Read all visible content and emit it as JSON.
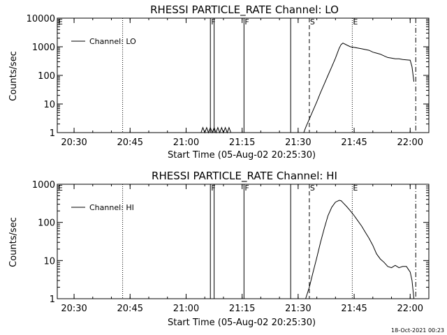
{
  "footer": {
    "timestamp": "18-Oct-2021 00:23"
  },
  "chart_data": [
    {
      "type": "line",
      "title": "RHESSI PARTICLE_RATE Channel: LO",
      "xlabel": "Start Time (05-Aug-02 20:25:30)",
      "ylabel": "Counts/sec",
      "yscale": "log",
      "ylim": [
        1,
        10000
      ],
      "xlim": [
        "20:25:30",
        "22:05:00"
      ],
      "x_ticks": [
        "20:30",
        "20:45",
        "21:00",
        "21:15",
        "21:30",
        "21:45",
        "22:00"
      ],
      "y_ticks": [
        "1",
        "10",
        "100",
        "1000",
        "10000"
      ],
      "legend": {
        "position": "top-left",
        "entries": [
          "Channel: LO"
        ]
      },
      "markers": [
        {
          "label": "E",
          "time": "20:25:30",
          "style": "none"
        },
        {
          "label": "",
          "time": "20:43:00",
          "style": "dotted"
        },
        {
          "label": "F",
          "time": "21:06:30",
          "style": "solid"
        },
        {
          "label": "",
          "time": "21:07:30",
          "style": "solid"
        },
        {
          "label": "F",
          "time": "21:15:30",
          "style": "solid"
        },
        {
          "label": "",
          "time": "21:28:00",
          "style": "solid"
        },
        {
          "label": "S",
          "time": "21:33:00",
          "style": "dashed"
        },
        {
          "label": "E",
          "time": "21:44:30",
          "style": "dotted"
        },
        {
          "label": "",
          "time": "22:01:30",
          "style": "dashdot"
        }
      ],
      "series": [
        {
          "name": "Channel: LO",
          "x": [
            "21:04:00",
            "21:04:30",
            "21:05:00",
            "21:05:30",
            "21:06:00",
            "21:06:30",
            "21:07:00",
            "21:07:30",
            "21:08:00",
            "21:08:30",
            "21:09:00",
            "21:09:30",
            "21:10:00",
            "21:10:30",
            "21:11:00",
            "21:11:30",
            "21:12:00",
            "21:13:00",
            "21:31:30",
            "21:32:00",
            "21:33:00",
            "21:34:00",
            "21:35:00",
            "21:36:00",
            "21:37:00",
            "21:38:00",
            "21:39:00",
            "21:40:00",
            "21:40:30",
            "21:41:00",
            "21:41:30",
            "21:42:00",
            "21:43:00",
            "21:44:00",
            "21:45:00",
            "21:46:00",
            "21:47:00",
            "21:48:00",
            "21:49:00",
            "21:50:00",
            "21:51:00",
            "21:52:00",
            "21:53:00",
            "21:54:00",
            "21:55:00",
            "21:56:00",
            "21:57:00",
            "21:58:00",
            "21:59:00",
            "22:00:00",
            "22:00:30",
            "22:01:00"
          ],
          "y": [
            1,
            1.5,
            1,
            1.5,
            1,
            1.5,
            1,
            1.5,
            1,
            1.5,
            1,
            1.5,
            1,
            1.5,
            1,
            1.5,
            1,
            1,
            1,
            1.5,
            3,
            6,
            12,
            25,
            50,
            100,
            200,
            400,
            600,
            900,
            1200,
            1350,
            1150,
            1000,
            950,
            900,
            850,
            800,
            750,
            650,
            600,
            550,
            480,
            420,
            400,
            380,
            380,
            360,
            350,
            340,
            200,
            60
          ]
        }
      ]
    },
    {
      "type": "line",
      "title": "RHESSI PARTICLE_RATE Channel: HI",
      "xlabel": "Start Time (05-Aug-02 20:25:30)",
      "ylabel": "Counts/sec",
      "yscale": "log",
      "ylim": [
        1,
        1000
      ],
      "xlim": [
        "20:25:30",
        "22:05:00"
      ],
      "x_ticks": [
        "20:30",
        "20:45",
        "21:00",
        "21:15",
        "21:30",
        "21:45",
        "22:00"
      ],
      "y_ticks": [
        "1",
        "10",
        "100",
        "1000"
      ],
      "legend": {
        "position": "top-left",
        "entries": [
          "Channel: HI"
        ]
      },
      "markers": [
        {
          "label": "E",
          "time": "20:25:30",
          "style": "none"
        },
        {
          "label": "",
          "time": "20:43:00",
          "style": "dotted"
        },
        {
          "label": "F",
          "time": "21:06:30",
          "style": "solid"
        },
        {
          "label": "",
          "time": "21:07:30",
          "style": "solid"
        },
        {
          "label": "F",
          "time": "21:15:30",
          "style": "solid"
        },
        {
          "label": "",
          "time": "21:28:00",
          "style": "solid"
        },
        {
          "label": "S",
          "time": "21:33:00",
          "style": "dashed"
        },
        {
          "label": "E",
          "time": "21:44:30",
          "style": "dotted"
        },
        {
          "label": "",
          "time": "22:01:30",
          "style": "dashdot"
        }
      ],
      "series": [
        {
          "name": "Channel: HI",
          "x": [
            "21:32:00",
            "21:33:00",
            "21:34:00",
            "21:35:00",
            "21:36:00",
            "21:37:00",
            "21:38:00",
            "21:39:00",
            "21:40:00",
            "21:41:00",
            "21:41:30",
            "21:42:00",
            "21:43:00",
            "21:44:00",
            "21:45:00",
            "21:46:00",
            "21:47:00",
            "21:48:00",
            "21:49:00",
            "21:50:00",
            "21:51:00",
            "21:52:00",
            "21:53:00",
            "21:54:00",
            "21:55:00",
            "21:56:00",
            "21:57:00",
            "21:58:00",
            "21:59:00",
            "22:00:00",
            "22:00:30",
            "22:01:00"
          ],
          "y": [
            1,
            2,
            5,
            12,
            30,
            70,
            150,
            250,
            340,
            380,
            370,
            330,
            260,
            200,
            150,
            110,
            80,
            55,
            38,
            25,
            15,
            11,
            9,
            7,
            6.5,
            7.5,
            6.5,
            7,
            7,
            5,
            3,
            1
          ]
        }
      ]
    }
  ]
}
